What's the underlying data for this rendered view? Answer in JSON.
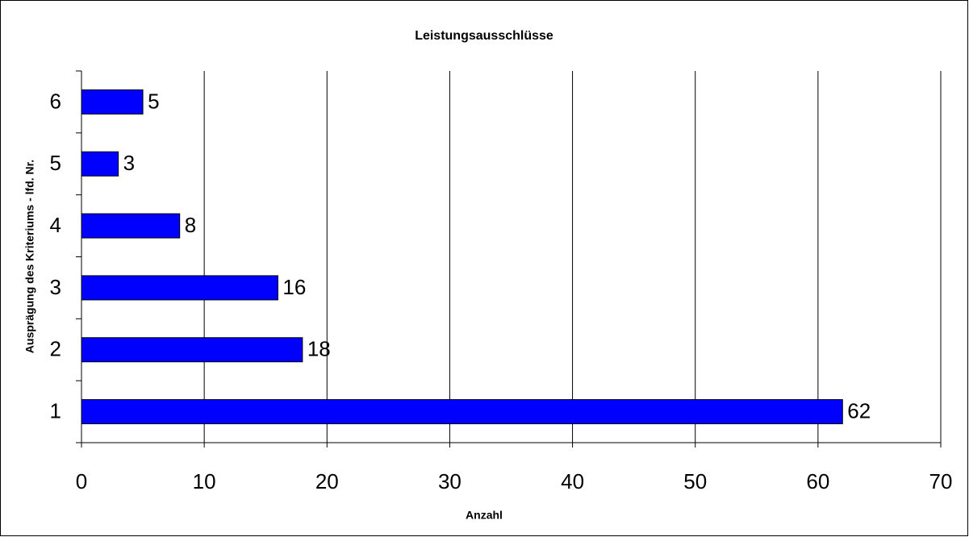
{
  "chart_data": {
    "type": "hbar",
    "title": "Leistungsausschlüsse",
    "x_label": "Anzahl",
    "y_label": "Ausprägung des Kriteriums - lfd. Nr.",
    "categories": [
      "1",
      "2",
      "3",
      "4",
      "5",
      "6"
    ],
    "values": [
      62,
      18,
      16,
      8,
      3,
      5
    ],
    "color": "#0000ff",
    "xlim": [
      0,
      70
    ],
    "xticks": [
      0,
      10,
      20,
      30,
      40,
      50,
      60,
      70
    ],
    "grid": true
  }
}
